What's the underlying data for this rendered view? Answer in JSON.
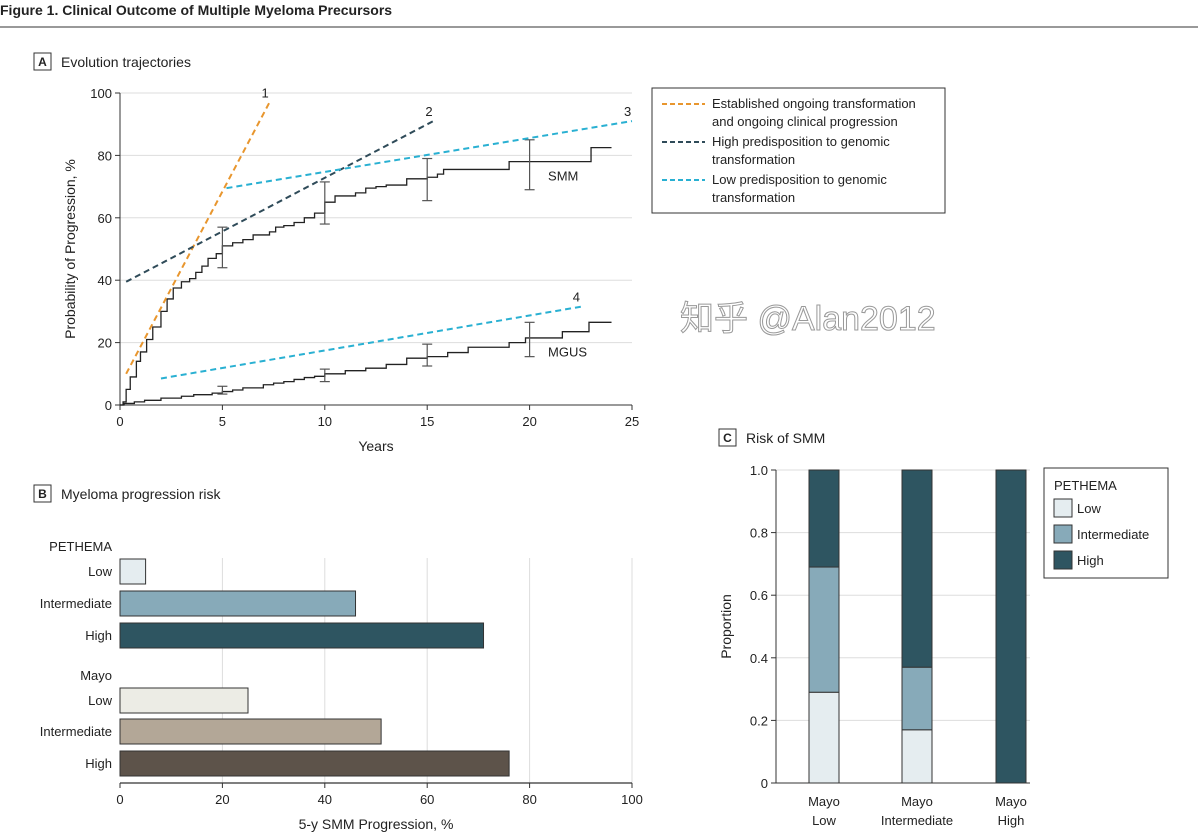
{
  "figure_title": "Figure 1. Clinical Outcome of Multiple Myeloma Precursors",
  "watermark": "知乎 @Alan2012",
  "colors": {
    "orange": "#e8962e",
    "dark_teal": "#2f4b59",
    "cyan": "#29b0d2",
    "pethema_low": "#e5edf0",
    "pethema_intermediate": "#87aab9",
    "pethema_high": "#2e5561",
    "mayo_low": "#ecece5",
    "mayo_intermediate": "#b3a797",
    "mayo_high": "#5d534a"
  },
  "chart_data": [
    {
      "panel": "A",
      "type": "line",
      "title": "Evolution trajectories",
      "xlabel": "Years",
      "ylabel": "Probability of Progression, %",
      "xlim": [
        0,
        25
      ],
      "ylim": [
        0,
        100
      ],
      "xticks": [
        "0",
        "5",
        "10",
        "15",
        "20",
        "25"
      ],
      "yticks": [
        "0",
        "20",
        "40",
        "60",
        "80",
        "100"
      ],
      "grid": "horizontal",
      "legend_placement": "right",
      "legend": [
        {
          "label_line1": "Established ongoing transformation",
          "label_line2": "and ongoing clinical progression",
          "color": "#e8962e"
        },
        {
          "label_line1": "High predisposition to genomic",
          "label_line2": "transformation",
          "color": "#2f4b59"
        },
        {
          "label_line1": "Low predisposition to genomic",
          "label_line2": "transformation",
          "color": "#29b0d2"
        }
      ],
      "trajectories": [
        {
          "label": "1",
          "color": "#e8962e",
          "points": [
            [
              0.3,
              10
            ],
            [
              7.3,
              97
            ]
          ]
        },
        {
          "label": "2",
          "color": "#2f4b59",
          "points": [
            [
              0.3,
              39.5
            ],
            [
              15.3,
              91
            ]
          ]
        },
        {
          "label": "3",
          "color": "#29b0d2",
          "points": [
            [
              5.2,
              69.5
            ],
            [
              25,
              91
            ]
          ]
        },
        {
          "label": "4",
          "color": "#29b0d2",
          "points": [
            [
              2,
              8.5
            ],
            [
              22.5,
              31.5
            ]
          ]
        }
      ],
      "series": [
        {
          "name": "SMM",
          "points": [
            [
              0,
              0
            ],
            [
              0.15,
              1
            ],
            [
              0.3,
              5
            ],
            [
              0.5,
              9
            ],
            [
              0.8,
              14
            ],
            [
              1,
              17
            ],
            [
              1.3,
              21
            ],
            [
              1.6,
              25
            ],
            [
              2,
              30
            ],
            [
              2.3,
              34
            ],
            [
              2.6,
              37.5
            ],
            [
              3,
              39.5
            ],
            [
              3.4,
              40.5
            ],
            [
              3.7,
              42.5
            ],
            [
              4,
              44.5
            ],
            [
              4.3,
              47
            ],
            [
              4.7,
              48.5
            ],
            [
              5,
              51
            ],
            [
              5.5,
              52
            ],
            [
              6,
              53
            ],
            [
              6.5,
              54.5
            ],
            [
              7.3,
              55.5
            ],
            [
              7.6,
              57
            ],
            [
              8,
              57.5
            ],
            [
              8.5,
              58.5
            ],
            [
              9,
              60
            ],
            [
              9.5,
              61.5
            ],
            [
              10,
              65
            ],
            [
              10.5,
              67
            ],
            [
              11.5,
              68
            ],
            [
              12,
              69.5
            ],
            [
              12.5,
              70
            ],
            [
              13,
              70.5
            ],
            [
              14,
              72.5
            ],
            [
              15,
              73
            ],
            [
              15.5,
              74
            ],
            [
              15.8,
              75.5
            ],
            [
              19,
              78
            ],
            [
              22.8,
              78
            ],
            [
              23,
              82.5
            ],
            [
              24,
              82.5
            ]
          ],
          "error_bars": [
            {
              "x": 5,
              "low": 44,
              "high": 57
            },
            {
              "x": 10,
              "low": 58,
              "high": 71.5
            },
            {
              "x": 15,
              "low": 65.5,
              "high": 79
            },
            {
              "x": 20,
              "low": 69,
              "high": 85
            }
          ]
        },
        {
          "name": "MGUS",
          "points": [
            [
              0,
              0
            ],
            [
              0.2,
              0.5
            ],
            [
              0.7,
              1
            ],
            [
              1.2,
              1.5
            ],
            [
              2,
              2.2
            ],
            [
              3,
              2.8
            ],
            [
              3.6,
              3.3
            ],
            [
              4.5,
              3.8
            ],
            [
              5,
              4.3
            ],
            [
              5.5,
              4.8
            ],
            [
              6,
              5.5
            ],
            [
              7,
              6.5
            ],
            [
              7.5,
              7
            ],
            [
              8,
              7.5
            ],
            [
              8.5,
              8.2
            ],
            [
              9,
              8.8
            ],
            [
              9.5,
              9.2
            ],
            [
              10,
              10
            ],
            [
              11,
              11
            ],
            [
              12,
              11.8
            ],
            [
              13,
              13
            ],
            [
              14,
              15
            ],
            [
              15,
              15.5
            ],
            [
              16,
              16.8
            ],
            [
              17,
              18.5
            ],
            [
              19,
              20
            ],
            [
              19.8,
              21.5
            ],
            [
              21.6,
              23.5
            ],
            [
              22.9,
              26.5
            ],
            [
              24,
              26.5
            ]
          ],
          "error_bars": [
            {
              "x": 5,
              "low": 3.5,
              "high": 6
            },
            {
              "x": 10,
              "low": 7.5,
              "high": 11.5
            },
            {
              "x": 15,
              "low": 12.5,
              "high": 19.5
            },
            {
              "x": 20,
              "low": 15.5,
              "high": 26.5
            }
          ]
        }
      ]
    },
    {
      "panel": "B",
      "type": "bar",
      "orientation": "horizontal",
      "title": "Myeloma progression risk",
      "xlabel": "5-y SMM Progression, %",
      "xlim": [
        0,
        100
      ],
      "xticks": [
        "0",
        "20",
        "40",
        "60",
        "80",
        "100"
      ],
      "grid": "vertical",
      "groups": [
        {
          "name": "PETHEMA",
          "categories": [
            "Low",
            "Intermediate",
            "High"
          ],
          "values": [
            5,
            46,
            71
          ],
          "colors": [
            "#e5edf0",
            "#87aab9",
            "#2e5561"
          ]
        },
        {
          "name": "Mayo",
          "categories": [
            "Low",
            "Intermediate",
            "High"
          ],
          "values": [
            25,
            51,
            76
          ],
          "colors": [
            "#ecece5",
            "#b3a797",
            "#5d534a"
          ]
        }
      ]
    },
    {
      "panel": "C",
      "type": "bar",
      "stacked": true,
      "title": "Risk of SMM",
      "ylabel": "Proportion",
      "ylim": [
        0,
        1
      ],
      "yticks": [
        "0",
        "0.2",
        "0.4",
        "0.6",
        "0.8",
        "1.0"
      ],
      "grid": "horizontal",
      "legend_placement": "right",
      "legend_title": "PETHEMA",
      "categories": [
        [
          "Mayo",
          "Low"
        ],
        [
          "Mayo",
          "Intermediate"
        ],
        [
          "Mayo",
          "High"
        ]
      ],
      "series": [
        {
          "name": "Low",
          "color": "#e5edf0",
          "values": [
            0.29,
            0.17,
            0
          ]
        },
        {
          "name": "Intermediate",
          "color": "#87aab9",
          "values": [
            0.4,
            0.2,
            0
          ]
        },
        {
          "name": "High",
          "color": "#2e5561",
          "values": [
            0.31,
            0.63,
            1.0
          ]
        }
      ]
    }
  ]
}
